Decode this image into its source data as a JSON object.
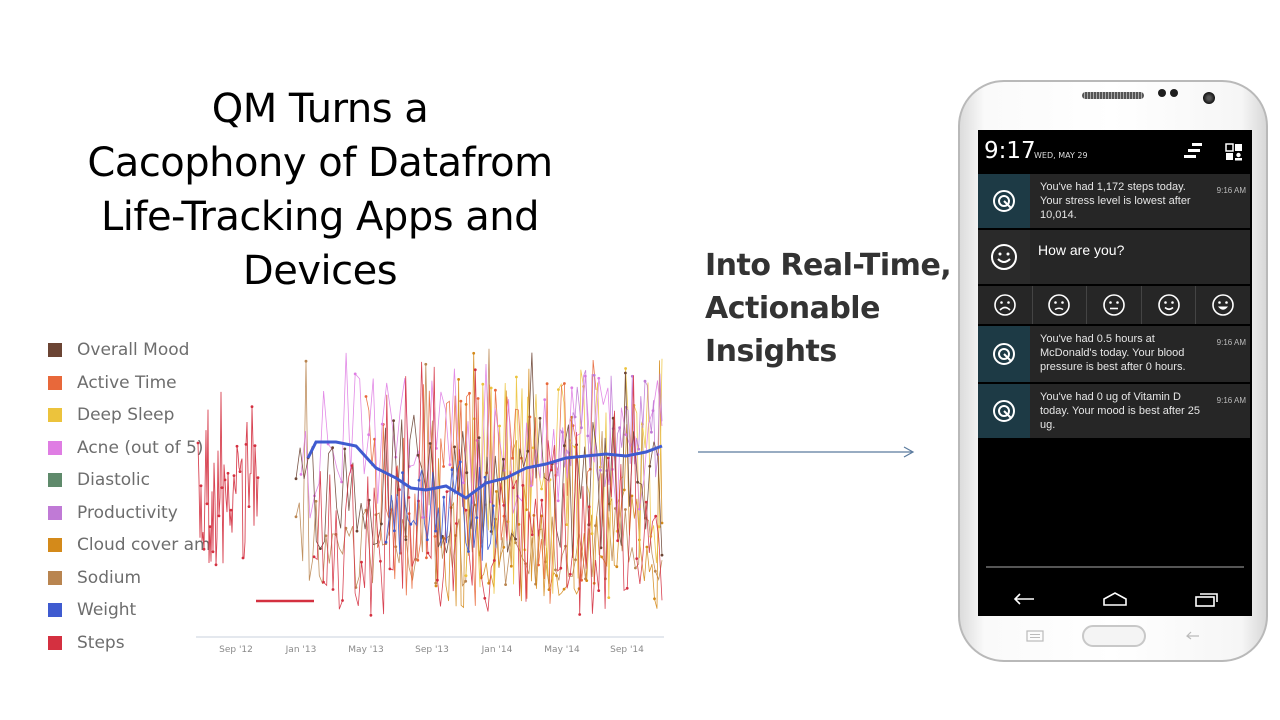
{
  "slide": {
    "title_lines": [
      "QM Turns a",
      "Cacophony of Datafrom",
      "Life-Tracking Apps and",
      "Devices"
    ],
    "insights_lines": [
      "Into Real-Time,",
      "Actionable",
      "Insights"
    ]
  },
  "legend": [
    {
      "label": "Overall Mood",
      "color": "#6b4434"
    },
    {
      "label": "Active Time",
      "color": "#e8683a"
    },
    {
      "label": "Deep Sleep",
      "color": "#ecc33c"
    },
    {
      "label": "Acne (out of 5)",
      "color": "#df7de3"
    },
    {
      "label": "Diastolic",
      "color": "#5f8a6b"
    },
    {
      "label": "Productivity",
      "color": "#c07ad6"
    },
    {
      "label": "Cloud cover am",
      "color": "#d48a1a"
    },
    {
      "label": "Sodium",
      "color": "#b98550"
    },
    {
      "label": "Weight",
      "color": "#3f5bd0"
    },
    {
      "label": "Steps",
      "color": "#d43040"
    }
  ],
  "chart_data": {
    "type": "line",
    "x_tick_labels": [
      "Sep '12",
      "Jan '13",
      "May '13",
      "Sep '13",
      "Jan '14",
      "May '14",
      "Sep '14"
    ]
  },
  "phone": {
    "time": "9:17",
    "date": "WED, MAY 29",
    "notifications": [
      {
        "text": "You've had 1,172 steps today. Your stress level is lowest after 10,014.",
        "time": "9:16 AM"
      },
      {
        "text": "You've had 0.5 hours at McDonald's today. Your blood pressure is best after 0 hours.",
        "time": "9:16 AM"
      },
      {
        "text": "You've had 0 ug of Vitamin D today.  Your mood is best after 25 ug.",
        "time": "9:16 AM"
      }
    ],
    "mood_question": "How are you?",
    "mood_options": [
      "very-sad-face-icon",
      "sad-face-icon",
      "neutral-face-icon",
      "happy-face-icon",
      "very-happy-face-icon"
    ]
  }
}
